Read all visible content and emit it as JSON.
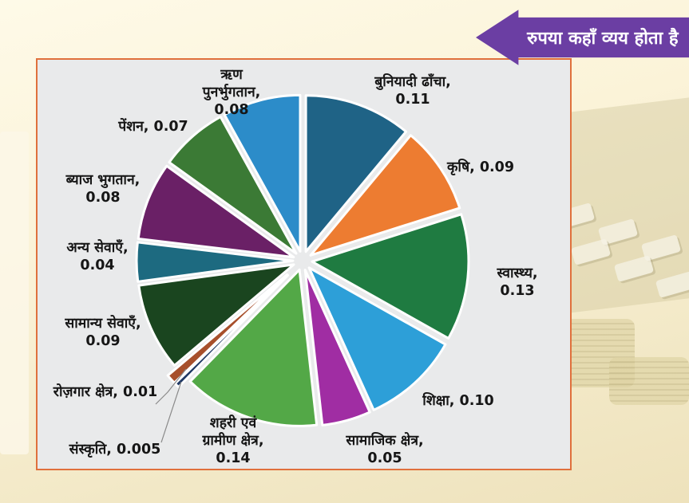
{
  "banner": {
    "text": "रुपया कहाँ व्यय होता है",
    "bg_color": "#6B3EA3",
    "text_color": "#FFFFFF"
  },
  "panel": {
    "background": "#E9EAEB",
    "border_color": "#E0703C"
  },
  "chart_data": {
    "type": "pie",
    "title": "रुपया कहाँ व्यय होता है",
    "start_angle_deg": 0,
    "direction": "clockwise",
    "exploded": true,
    "legend": "none",
    "labels_around_pie": true,
    "slices": [
      {
        "label": "बुनियादी ढाँचा",
        "value": 0.11,
        "color": "#1F6386",
        "display": "बुनियादी ढाँचा,\n0.11"
      },
      {
        "label": "कृषि",
        "value": 0.09,
        "color": "#ED7C31",
        "display": "कृषि, 0.09"
      },
      {
        "label": "स्वास्थ्य",
        "value": 0.13,
        "color": "#1F7B41",
        "display": "स्वास्थ्य, 0.13"
      },
      {
        "label": "शिक्षा",
        "value": 0.1,
        "color": "#2D9FD8",
        "display": "शिक्षा, 0.10"
      },
      {
        "label": "सामाजिक क्षेत्र",
        "value": 0.05,
        "color": "#A02DA3",
        "display": "सामाजिक क्षेत्र,\n0.05"
      },
      {
        "label": "शहरी एवं ग्रामीण क्षेत्र",
        "value": 0.14,
        "color": "#53A847",
        "display": "शहरी एवं\nग्रामीण क्षेत्र,\n0.14"
      },
      {
        "label": "संस्कृति",
        "value": 0.005,
        "color": "#1F3864",
        "display": "संस्कृति, 0.005"
      },
      {
        "label": "रोज़गार क्षेत्र",
        "value": 0.01,
        "color": "#A74F2B",
        "display": "रोज़गार क्षेत्र, 0.01"
      },
      {
        "label": "सामान्य सेवाएँ",
        "value": 0.09,
        "color": "#1A451F",
        "display": "सामान्य सेवाएँ,\n0.09"
      },
      {
        "label": "अन्य सेवाएँ",
        "value": 0.04,
        "color": "#1D6A80",
        "display": "अन्य सेवाएँ,\n0.04"
      },
      {
        "label": "ब्याज भुगतान",
        "value": 0.08,
        "color": "#6A2066",
        "display": "ब्याज भुगतान,\n0.08"
      },
      {
        "label": "पेंशन",
        "value": 0.07,
        "color": "#3B7A35",
        "display": "पेंशन, 0.07"
      },
      {
        "label": "ऋण पुनर्भुगतान",
        "value": 0.08,
        "color": "#2C8CC9",
        "display": "ऋण\nपुनर्भुगतान,\n0.08"
      }
    ]
  }
}
